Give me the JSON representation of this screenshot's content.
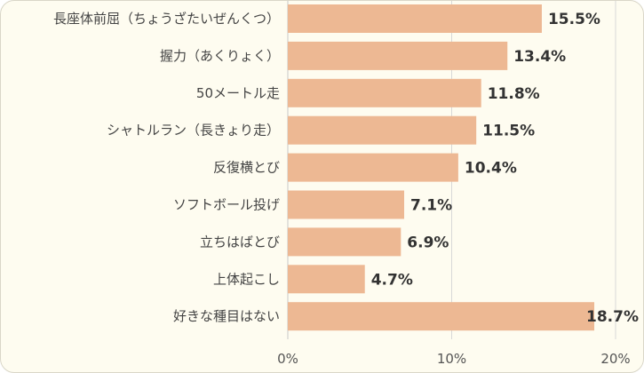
{
  "chart_data": {
    "type": "bar",
    "orientation": "horizontal",
    "categories": [
      "長座体前屈（ちょうざたいぜんくつ）",
      "握力（あくりょく）",
      "50メートル走",
      "シャトルラン（長きょり走）",
      "反復横とび",
      "ソフトボール投げ",
      "立ちはばとび",
      "上体起こし",
      "好きな種目はない"
    ],
    "values": [
      15.5,
      13.4,
      11.8,
      11.5,
      10.4,
      7.1,
      6.9,
      4.7,
      18.7
    ],
    "value_labels": [
      "15.5%",
      "13.4%",
      "11.8%",
      "11.5%",
      "10.4%",
      "7.1%",
      "6.9%",
      "4.7%",
      "18.7%"
    ],
    "xlim": [
      0,
      20
    ],
    "x_ticks": [
      0,
      10,
      20
    ],
    "x_tick_labels": [
      "0%",
      "10%",
      "20%"
    ],
    "grid": true,
    "bar_color": "#edb893"
  }
}
